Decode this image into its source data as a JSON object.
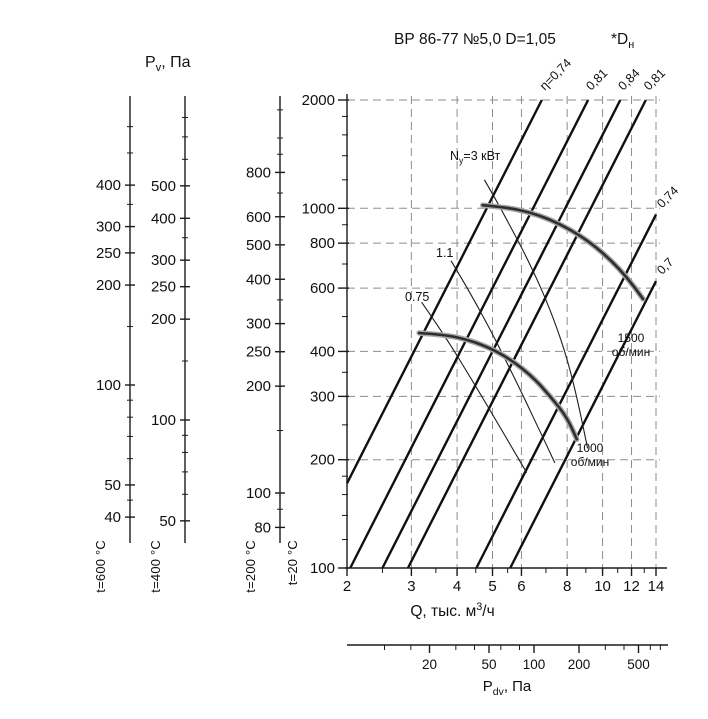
{
  "header": {
    "title": "ВР 86-77 №5,0 D=1,05",
    "suffix_pre": "*D",
    "suffix_sub": "н"
  },
  "axis_titles": {
    "pv_pre": "P",
    "pv_sub": "v",
    "pv_post": ", Па",
    "q_pre": "Q, тыс. м",
    "q_sup": "3",
    "q_post": "/ч",
    "pdv_pre": "P",
    "pdv_sub": "dv",
    "pdv_post": ", Па"
  },
  "chart_data": {
    "type": "line",
    "title": "ВР 86-77 №5,0 D=1,05 *Dн",
    "x_axis": {
      "label": "Q, тыс. м³/ч",
      "scale": "log",
      "min": 2,
      "max": 14,
      "ticks": [
        2,
        3,
        4,
        5,
        6,
        8,
        10,
        12,
        14
      ],
      "minor_ticks": [
        2.5,
        3.5,
        4.5,
        5.5,
        7,
        9,
        11,
        13
      ]
    },
    "y_axis": {
      "label": "Pv, Па",
      "temp_label": "t=20 °C",
      "scale": "log",
      "min": 100,
      "max": 2000,
      "ticks": [
        2000,
        1000,
        800,
        600,
        400,
        300,
        200,
        100
      ],
      "minor_ticks": [
        1800,
        1600,
        1400,
        1200,
        900,
        700,
        500,
        350,
        250,
        180,
        160,
        140,
        120
      ]
    },
    "grid": {
      "x_values": [
        3,
        4,
        5,
        6,
        8,
        10,
        12,
        14
      ],
      "y_values": [
        2000,
        1000,
        800,
        600,
        400,
        300,
        200
      ]
    },
    "aux_axes": [
      {
        "temp_label": "t=600 °C",
        "ticks": [
          400,
          300,
          250,
          200,
          100,
          50,
          40
        ],
        "minor_ticks": [
          600,
          500,
          350,
          150,
          90,
          80,
          70,
          60,
          45
        ]
      },
      {
        "temp_label": "t=400 °C",
        "ticks": [
          500,
          400,
          300,
          250,
          200,
          100,
          50
        ],
        "minor_ticks": [
          800,
          700,
          600,
          350,
          150,
          90,
          80,
          70,
          60
        ]
      },
      {
        "temp_label": "t=200 °C",
        "ticks": [
          800,
          600,
          500,
          400,
          300,
          250,
          200,
          100,
          80
        ],
        "minor_ticks": [
          1200,
          1000,
          900,
          700,
          350,
          150,
          90
        ]
      }
    ],
    "efficiency_lines": [
      {
        "label": "η=0,74",
        "k": 43
      },
      {
        "label": "0,81",
        "k": 24
      },
      {
        "label": "0,84",
        "k": 16
      },
      {
        "label": "0,81",
        "k": 11.6
      },
      {
        "label": "0,74",
        "k": 4.9
      },
      {
        "label": "0,7",
        "k": 3.2
      }
    ],
    "fan_curves": [
      {
        "rpm_label": "1500",
        "unit_label": "об/мин",
        "points": [
          [
            4.7,
            1020
          ],
          [
            5.5,
            1005
          ],
          [
            6.3,
            975
          ],
          [
            7.2,
            930
          ],
          [
            8.2,
            870
          ],
          [
            9.3,
            800
          ],
          [
            10.5,
            720
          ],
          [
            11.7,
            640
          ],
          [
            12.9,
            560
          ]
        ]
      },
      {
        "rpm_label": "1000",
        "unit_label": "об/мин",
        "points": [
          [
            3.15,
            450
          ],
          [
            3.7,
            445
          ],
          [
            4.25,
            432
          ],
          [
            4.9,
            410
          ],
          [
            5.6,
            380
          ],
          [
            6.4,
            342
          ],
          [
            7.2,
            300
          ],
          [
            8.0,
            262
          ],
          [
            8.5,
            228
          ]
        ]
      }
    ],
    "power_lines": [
      {
        "pre": "N",
        "sub": "у",
        "post": "=3 кВт",
        "points": [
          [
            4.75,
            1200
          ],
          [
            5.1,
            1060
          ],
          [
            5.5,
            920
          ],
          [
            6.0,
            780
          ],
          [
            6.6,
            640
          ],
          [
            7.2,
            520
          ],
          [
            7.9,
            400
          ],
          [
            8.5,
            300
          ],
          [
            9.1,
            215
          ]
        ]
      },
      {
        "pre": "1.1",
        "sub": "",
        "post": "",
        "points": [
          [
            3.85,
            715
          ],
          [
            4.15,
            630
          ],
          [
            4.5,
            545
          ],
          [
            4.9,
            465
          ],
          [
            5.35,
            390
          ],
          [
            5.85,
            325
          ],
          [
            6.4,
            268
          ],
          [
            6.95,
            225
          ],
          [
            7.4,
            196
          ]
        ]
      },
      {
        "pre": "0.75",
        "sub": "",
        "post": "",
        "points": [
          [
            3.2,
            548
          ],
          [
            3.5,
            480
          ],
          [
            3.85,
            415
          ],
          [
            4.25,
            352
          ],
          [
            4.7,
            297
          ],
          [
            5.2,
            250
          ],
          [
            5.7,
            213
          ],
          [
            6.2,
            184
          ]
        ]
      }
    ],
    "pdv_axis": {
      "label": "Pdv, Па",
      "scale": "log",
      "ticks": [
        20,
        50,
        100,
        200,
        500
      ],
      "minor_ticks": [
        10,
        15,
        30,
        40,
        60,
        80,
        300,
        400,
        600,
        700
      ]
    }
  }
}
